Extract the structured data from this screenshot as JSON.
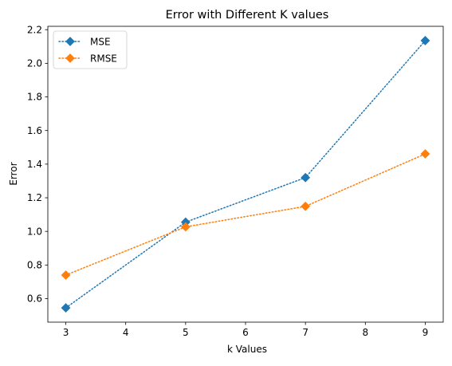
{
  "chart_data": {
    "type": "line",
    "title": "Error with Different K values",
    "xlabel": "k Values",
    "ylabel": "Error",
    "x": [
      3,
      5,
      7,
      9
    ],
    "xlim": [
      2.7,
      9.3
    ],
    "ylim": [
      0.46,
      2.22
    ],
    "xticks": [
      3,
      4,
      5,
      6,
      7,
      8,
      9
    ],
    "yticks": [
      0.6,
      0.8,
      1.0,
      1.2,
      1.4,
      1.6,
      1.8,
      2.0,
      2.2
    ],
    "ytick_labels": [
      "0.6",
      "0.8",
      "1.0",
      "1.2",
      "1.4",
      "1.6",
      "1.8",
      "2.0",
      "2.2"
    ],
    "grid": false,
    "legend": "top-left",
    "series": [
      {
        "name": "MSE",
        "values": [
          0.545,
          1.055,
          1.32,
          2.135
        ],
        "color": "#1f77b4",
        "marker": "diamond",
        "linestyle": "dotted"
      },
      {
        "name": "RMSE",
        "values": [
          0.74,
          1.027,
          1.149,
          1.461
        ],
        "color": "#ff7f0e",
        "marker": "diamond",
        "linestyle": "dotted"
      }
    ]
  }
}
